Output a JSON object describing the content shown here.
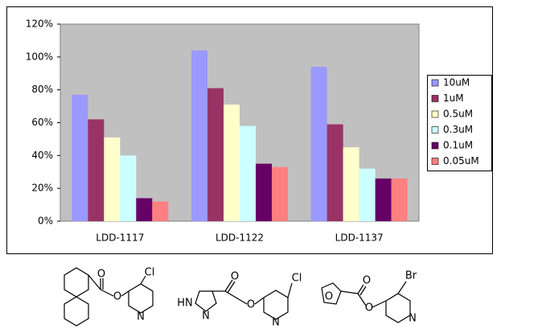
{
  "chart_data": {
    "type": "bar",
    "categories": [
      "LDD-1117",
      "LDD-1122",
      "LDD-1137"
    ],
    "series": [
      {
        "name": "10uM",
        "color": "#9999ff",
        "values": [
          77,
          104,
          94
        ]
      },
      {
        "name": "1uM",
        "color": "#993366",
        "values": [
          62,
          81,
          59
        ]
      },
      {
        "name": "0.5uM",
        "color": "#ffffcc",
        "values": [
          51,
          71,
          45
        ]
      },
      {
        "name": "0.3uM",
        "color": "#ccffff",
        "values": [
          40,
          58,
          32
        ]
      },
      {
        "name": "0.1uM",
        "color": "#660066",
        "values": [
          14,
          35,
          26
        ]
      },
      {
        "name": "0.05uM",
        "color": "#ff8080",
        "values": [
          12,
          33,
          26
        ]
      }
    ],
    "ylim": [
      0,
      120
    ],
    "yticks": [
      {
        "value": 0,
        "label": "0%"
      },
      {
        "value": 20,
        "label": "20%"
      },
      {
        "value": 40,
        "label": "40%"
      },
      {
        "value": 60,
        "label": "60%"
      },
      {
        "value": 80,
        "label": "80%"
      },
      {
        "value": 100,
        "label": "100%"
      },
      {
        "value": 120,
        "label": "120%"
      }
    ],
    "grid": false,
    "legend": "right"
  },
  "structures": [
    {
      "labels": [
        "O",
        "O",
        "Cl",
        "N"
      ]
    },
    {
      "labels": [
        "HN",
        "N",
        "O",
        "O",
        "Cl",
        "N"
      ]
    },
    {
      "labels": [
        "O",
        "O",
        "O",
        "Br",
        "N"
      ]
    }
  ]
}
